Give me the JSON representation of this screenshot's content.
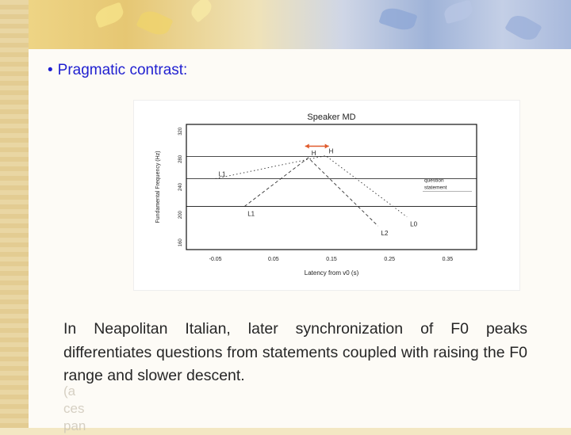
{
  "slide": {
    "bullet": "Pragmatic contrast:",
    "body": "In Neapolitan Italian, later synchronization of F0 peaks differentiates questions from statements coupled with raising the F0 range and slower descent.",
    "ghost_lines": [
      "(a",
      "ces",
      "pan"
    ],
    "colors": {
      "bullet": "#1f1fd0",
      "body": "#262626",
      "arrow": "#e05a2b"
    }
  },
  "chart_data": {
    "type": "line",
    "title": "Speaker MD",
    "xlabel": "Latency from v0 (s)",
    "ylabel": "Fundamental Frequency (Hz)",
    "x_ticks": [
      "-0.05",
      "0.05",
      "0.15",
      "0.25",
      "0.35"
    ],
    "y_ticks": [
      "160",
      "200",
      "240",
      "280",
      "320"
    ],
    "xlim": [
      -0.1,
      0.4
    ],
    "ylim": [
      150,
      330
    ],
    "series": [
      {
        "name": "question",
        "style": "dotted",
        "points": [
          [
            -0.05,
            252
          ],
          [
            0.14,
            285
          ],
          [
            0.28,
            197
          ]
        ]
      },
      {
        "name": "statement",
        "style": "dashed",
        "points": [
          [
            0.0,
            212
          ],
          [
            0.11,
            282
          ],
          [
            0.23,
            184
          ]
        ]
      }
    ],
    "point_labels": [
      {
        "text": "L1",
        "series": "question",
        "index": 0
      },
      {
        "text": "H",
        "series": "question",
        "index": 1
      },
      {
        "text": "L0",
        "series": "question",
        "index": 2
      },
      {
        "text": "L1",
        "series": "statement",
        "index": 0
      },
      {
        "text": "H",
        "series": "statement",
        "index": 1
      },
      {
        "text": "L2",
        "series": "statement",
        "index": 2
      }
    ],
    "legend": {
      "placement": "right",
      "entries": [
        "question",
        "statement"
      ]
    },
    "reference_lines": [
      284,
      252,
      212
    ],
    "annotation": "arrow between the two H peaks"
  }
}
